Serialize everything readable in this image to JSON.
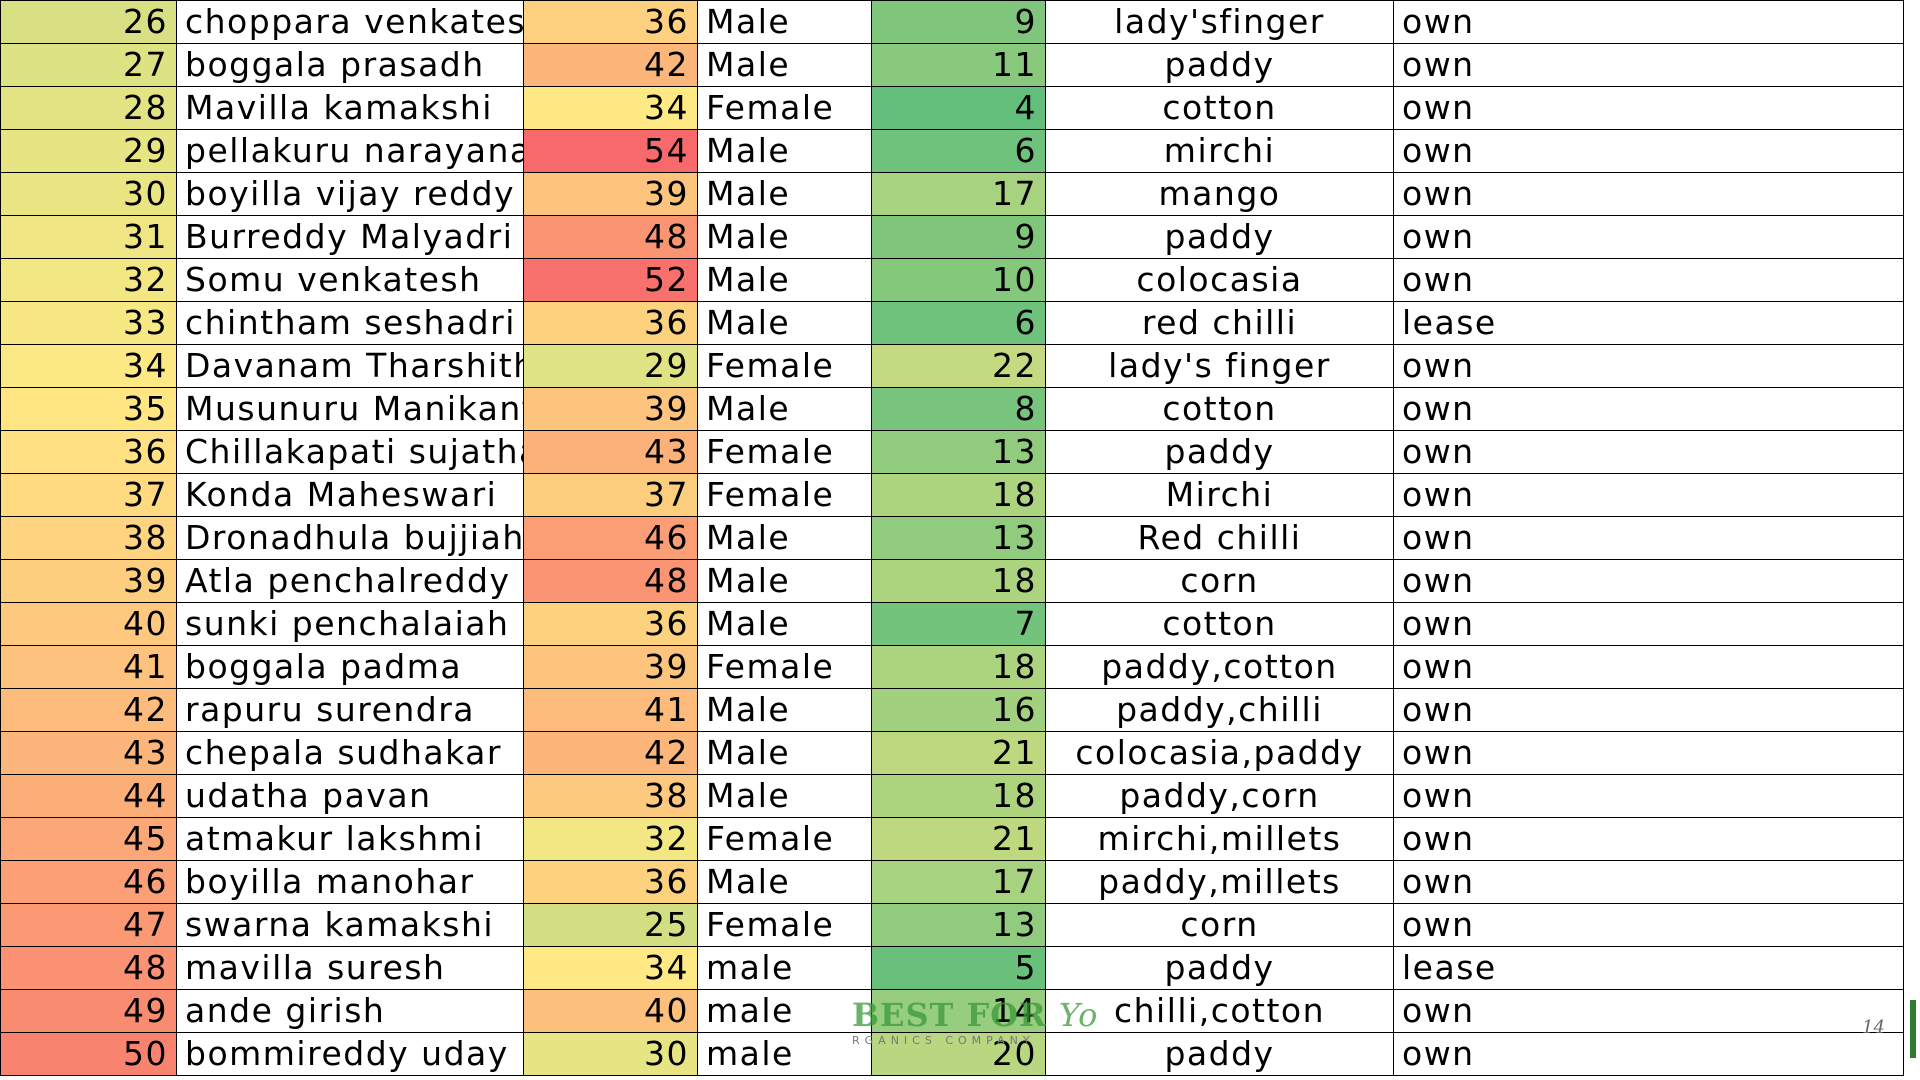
{
  "rows": [
    {
      "sno": "26",
      "name": "choppara venkatesh",
      "age": "36",
      "gender": "Male",
      "exp": "9",
      "crop": "lady'sfinger",
      "land": "own",
      "sno_color": "#d9e083",
      "age_color": "#fdd17f",
      "exp_color": "#7fc67c"
    },
    {
      "sno": "27",
      "name": "boggala prasadh",
      "age": "42",
      "gender": "Male",
      "exp": "11",
      "crop": "paddy",
      "land": "own",
      "sno_color": "#dde283",
      "age_color": "#fcb67a",
      "exp_color": "#88c97d"
    },
    {
      "sno": "28",
      "name": "Mavilla kamakshi",
      "age": "34",
      "gender": "Female",
      "exp": "4",
      "crop": "cotton",
      "land": "own",
      "sno_color": "#e2e383",
      "age_color": "#ffe984",
      "exp_color": "#63be7b"
    },
    {
      "sno": "29",
      "name": "pellakuru narayana",
      "age": "54",
      "gender": "Male",
      "exp": "6",
      "crop": "mirchi",
      "land": "own",
      "sno_color": "#e6e483",
      "age_color": "#f8696b",
      "exp_color": "#6fc27c"
    },
    {
      "sno": "30",
      "name": "boyilla vijay reddy",
      "age": "39",
      "gender": "Male",
      "exp": "17",
      "crop": "mango",
      "land": "own",
      "sno_color": "#eae583",
      "age_color": "#fdc47d",
      "exp_color": "#a7d27f"
    },
    {
      "sno": "31",
      "name": " Burreddy Malyadri",
      "age": "48",
      "gender": "Male",
      "exp": "9",
      "crop": "paddy",
      "land": "own",
      "sno_color": "#efe683",
      "age_color": "#fa9473",
      "exp_color": "#7fc67c"
    },
    {
      "sno": "32",
      "name": "Somu  venkatesh",
      "age": "52",
      "gender": "Male",
      "exp": "10",
      "crop": "colocasia",
      "land": "own",
      "sno_color": "#f3e783",
      "age_color": "#f8716c",
      "exp_color": "#84c87c"
    },
    {
      "sno": "33",
      "name": "chintham seshadri",
      "age": "36",
      "gender": "Male",
      "exp": "6",
      "crop": "red chilli",
      "land": "lease",
      "sno_color": "#f7e883",
      "age_color": "#fdd27f",
      "exp_color": "#6fc27c"
    },
    {
      "sno": "34",
      "name": "Davanam Tharshitha",
      "age": "29",
      "gender": "Female",
      "exp": "22",
      "crop": "lady's finger",
      "land": "own",
      "sno_color": "#fce983",
      "age_color": "#e0e383",
      "exp_color": "#c4da81"
    },
    {
      "sno": "35",
      "name": "Musunuru Manikanta",
      "age": "39",
      "gender": "Male",
      "exp": "8",
      "crop": "cotton",
      "land": "own",
      "sno_color": "#ffe683",
      "age_color": "#fdc47d",
      "exp_color": "#79c47c"
    },
    {
      "sno": "36",
      "name": "Chillakapati sujatha",
      "age": "43",
      "gender": "Female",
      "exp": "13",
      "crop": "paddy",
      "land": "own",
      "sno_color": "#ffe082",
      "age_color": "#fcb179",
      "exp_color": "#91cc7e"
    },
    {
      "sno": "37",
      "name": "Konda Maheswari",
      "age": "37",
      "gender": "Female",
      "exp": "18",
      "crop": "Mirchi",
      "land": "own",
      "sno_color": "#ffda81",
      "age_color": "#fdcd7e",
      "exp_color": "#acd47f"
    },
    {
      "sno": "38",
      "name": "Dronadhula bujjiah",
      "age": "46",
      "gender": "Male",
      "exp": "13",
      "crop": "Red chilli",
      "land": "own",
      "sno_color": "#fed480",
      "age_color": "#fb9d75",
      "exp_color": "#91cc7e"
    },
    {
      "sno": "39",
      "name": "Atla penchalreddy",
      "age": "48",
      "gender": "Male",
      "exp": "18",
      "crop": "corn",
      "land": "own",
      "sno_color": "#fece7f",
      "age_color": "#fa9473",
      "exp_color": "#acd47f"
    },
    {
      "sno": "40",
      "name": "sunki penchalaiah",
      "age": "36",
      "gender": "Male",
      "exp": "7",
      "crop": "cotton",
      "land": "own",
      "sno_color": "#fec87e",
      "age_color": "#fdd27f",
      "exp_color": "#74c37c"
    },
    {
      "sno": "41",
      "name": "boggala padma",
      "age": "39",
      "gender": "Female",
      "exp": "18",
      "crop": "paddy,cotton",
      "land": "own",
      "sno_color": "#fdc27d",
      "age_color": "#fdc47d",
      "exp_color": "#acd47f"
    },
    {
      "sno": "42",
      "name": "rapuru surendra",
      "age": "41",
      "gender": "Male",
      "exp": "16",
      "crop": "paddy,chilli",
      "land": "own",
      "sno_color": "#fdbb7c",
      "age_color": "#fcbb7b",
      "exp_color": "#a1d07f"
    },
    {
      "sno": "43",
      "name": "chepala sudhakar",
      "age": "42",
      "gender": "Male",
      "exp": "21",
      "crop": "colocasia,paddy",
      "land": "own",
      "sno_color": "#fcb57a",
      "age_color": "#fcb67a",
      "exp_color": "#bed880"
    },
    {
      "sno": "44",
      "name": "udatha pavan",
      "age": "38",
      "gender": "Male",
      "exp": "18",
      "crop": "paddy,corn",
      "land": "own",
      "sno_color": "#fcae79",
      "age_color": "#fdc97e",
      "exp_color": "#acd47f"
    },
    {
      "sno": "45",
      "name": "atmakur  lakshmi",
      "age": "32",
      "gender": "Female",
      "exp": "21",
      "crop": "mirchi,millets",
      "land": "own",
      "sno_color": "#fba777",
      "age_color": "#f3e783",
      "exp_color": "#bed880"
    },
    {
      "sno": "46",
      "name": "boyilla manohar",
      "age": "36",
      "gender": "Male",
      "exp": "17",
      "crop": "paddy,millets",
      "land": "own",
      "sno_color": "#fba076",
      "age_color": "#fdd27f",
      "exp_color": "#a7d27f"
    },
    {
      "sno": "47",
      "name": "swarna kamakshi",
      "age": "25",
      "gender": "Female",
      "exp": "13",
      "crop": "corn",
      "land": "own",
      "sno_color": "#fa9974",
      "age_color": "#d2de82",
      "exp_color": "#91cc7e"
    },
    {
      "sno": "48",
      "name": "mavilla suresh",
      "age": "34",
      "gender": "male",
      "exp": "5",
      "crop": "paddy",
      "land": "lease",
      "sno_color": "#fa9273",
      "age_color": "#ffe984",
      "exp_color": "#69c07b"
    },
    {
      "sno": "49",
      "name": "ande girish",
      "age": "40",
      "gender": "male",
      "exp": "14",
      "crop": "chilli,cotton",
      "land": "own",
      "sno_color": "#f98b71",
      "age_color": "#fcbf7c",
      "exp_color": "#97cd7e"
    },
    {
      "sno": "50",
      "name": "bommireddy uday",
      "age": "30",
      "gender": "male",
      "exp": "20",
      "crop": "paddy",
      "land": "own",
      "sno_color": "#f8846f",
      "age_color": "#e6e483",
      "exp_color": "#b8d780"
    }
  ],
  "watermark": {
    "title_bold": "BEST FOR",
    "title_italic": "Yo",
    "subtitle": "RGANICS COMPANY",
    "color": "#3a9a3a"
  },
  "page_number": "14",
  "accent_color": "#2e7d32"
}
